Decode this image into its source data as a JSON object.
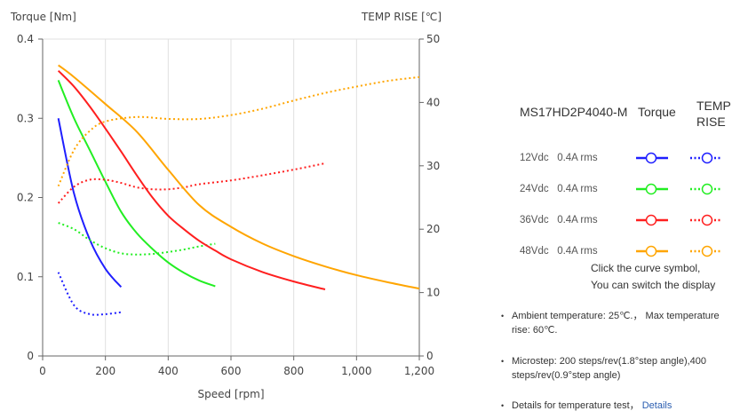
{
  "chart_data": {
    "type": "line",
    "xlabel": "Speed [rpm]",
    "ylabel": "Torque  [Nm]",
    "y2label": "TEMP RISE [℃]",
    "xlim": [
      0,
      1200
    ],
    "ylim": [
      0,
      0.4
    ],
    "y2lim": [
      0,
      50
    ],
    "xticks": [
      "0",
      "200",
      "400",
      "600",
      "800",
      "1,000",
      "1,200"
    ],
    "yticks": [
      "0",
      "0.1",
      "0.2",
      "0.3",
      "0.4"
    ],
    "y2ticks": [
      "0",
      "10",
      "20",
      "30",
      "40",
      "50"
    ],
    "grid": "vertical",
    "series": [
      {
        "name": "12Vdc 0.4A rms",
        "color": "#1f1fff",
        "torque": {
          "x": [
            50,
            100,
            150,
            200,
            250
          ],
          "y": [
            0.3,
            0.205,
            0.147,
            0.11,
            0.087
          ]
        },
        "temp": {
          "x": [
            50,
            100,
            150,
            200,
            250
          ],
          "y": [
            13.2,
            8.0,
            6.6,
            6.6,
            6.9
          ]
        }
      },
      {
        "name": "24Vdc 0.4A rms",
        "color": "#22ee22",
        "torque": {
          "x": [
            50,
            100,
            150,
            200,
            250,
            300,
            350,
            400,
            450,
            500,
            550
          ],
          "y": [
            0.348,
            0.3,
            0.26,
            0.22,
            0.182,
            0.155,
            0.135,
            0.118,
            0.105,
            0.095,
            0.088
          ]
        },
        "temp": {
          "x": [
            50,
            100,
            150,
            200,
            250,
            300,
            350,
            400,
            450,
            500,
            550
          ],
          "y": [
            21.0,
            20.0,
            18.3,
            17.0,
            16.2,
            16.0,
            16.1,
            16.4,
            16.8,
            17.3,
            17.7
          ]
        }
      },
      {
        "name": "36Vdc 0.4A rms",
        "color": "#ff1f1f",
        "torque": {
          "x": [
            50,
            100,
            150,
            200,
            250,
            300,
            350,
            400,
            450,
            500,
            550,
            600,
            700,
            800,
            900
          ],
          "y": [
            0.36,
            0.34,
            0.315,
            0.287,
            0.258,
            0.228,
            0.2,
            0.177,
            0.16,
            0.145,
            0.133,
            0.122,
            0.106,
            0.094,
            0.084
          ]
        },
        "temp": {
          "x": [
            50,
            100,
            150,
            200,
            250,
            300,
            350,
            400,
            450,
            500,
            600,
            700,
            800,
            900
          ],
          "y": [
            24.1,
            26.7,
            27.8,
            27.8,
            27.3,
            26.6,
            26.3,
            26.3,
            26.6,
            27.1,
            27.7,
            28.5,
            29.4,
            30.4
          ]
        }
      },
      {
        "name": "48Vdc 0.4A rms",
        "color": "#ffa500",
        "torque": {
          "x": [
            50,
            100,
            200,
            300,
            400,
            500,
            600,
            700,
            800,
            900,
            1000,
            1100,
            1200
          ],
          "y": [
            0.367,
            0.352,
            0.318,
            0.283,
            0.235,
            0.19,
            0.163,
            0.142,
            0.126,
            0.113,
            0.102,
            0.093,
            0.085
          ]
        },
        "temp": {
          "x": [
            50,
            100,
            150,
            200,
            300,
            400,
            500,
            600,
            700,
            800,
            900,
            1000,
            1100,
            1200
          ],
          "y": [
            26.8,
            32.5,
            35.5,
            37.0,
            37.7,
            37.4,
            37.4,
            38.0,
            39.0,
            40.3,
            41.5,
            42.5,
            43.4,
            44.0
          ]
        }
      }
    ]
  },
  "legend": {
    "model": "MS17HD2P4040-M",
    "torque": "Torque",
    "temp1": "TEMP",
    "temp2": "RISE",
    "rows": [
      {
        "label": "12Vdc   0.4A rms"
      },
      {
        "label": "24Vdc   0.4A rms"
      },
      {
        "label": "36Vdc   0.4A rms"
      },
      {
        "label": "48Vdc   0.4A rms"
      }
    ],
    "hint1": "Click the curve symbol,",
    "hint2": "You can switch the display"
  },
  "notes": {
    "ambient": "Ambient temperature: 25℃.， Max temperature rise: 60℃.",
    "microstep": "Microstep: 200 steps/rev(1.8°step angle),400 steps/rev(0.9°step angle)",
    "details_text": "Details for temperature test，",
    "details_link": "Details"
  }
}
